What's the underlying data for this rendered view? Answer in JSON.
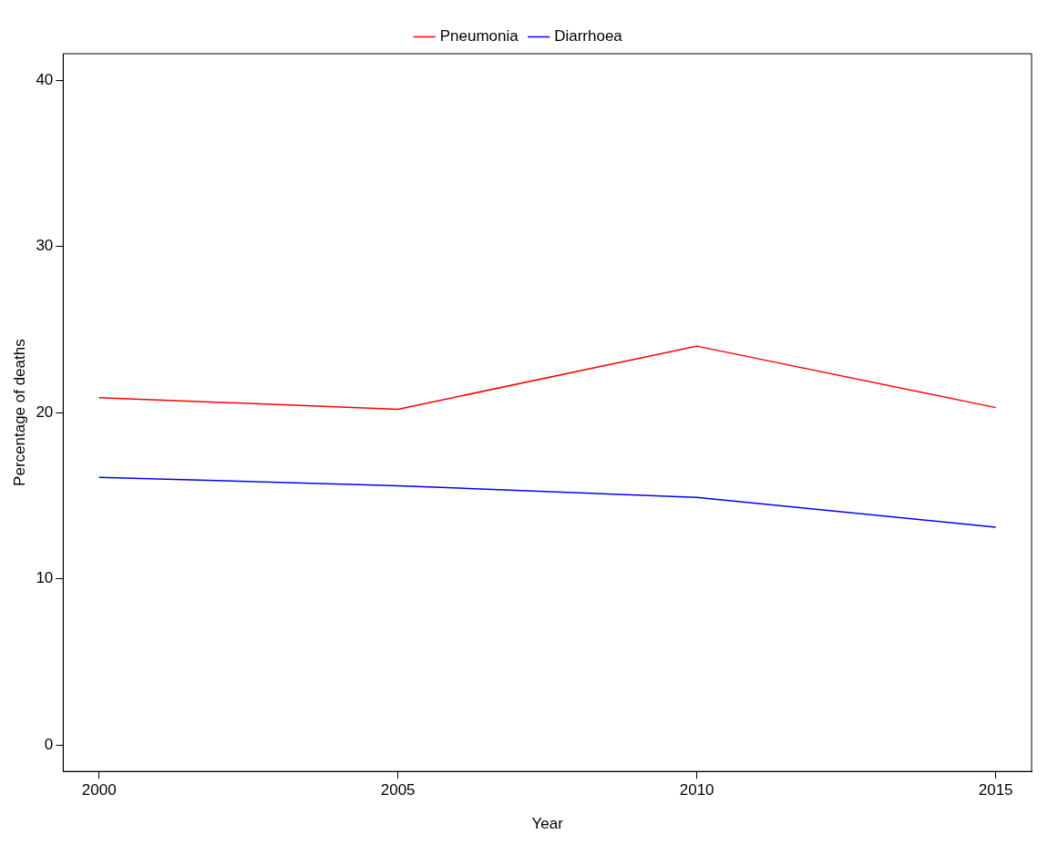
{
  "chart_data": {
    "type": "line",
    "xlabel": "Year",
    "ylabel": "Percentage of deaths",
    "x": [
      2000,
      2005,
      2010,
      2015
    ],
    "series": [
      {
        "name": "Pneumonia",
        "color": "#ff0000",
        "values": [
          20.9,
          20.2,
          24.0,
          20.3
        ]
      },
      {
        "name": "Diarrhoea",
        "color": "#0000ff",
        "values": [
          16.1,
          15.6,
          14.9,
          13.1
        ]
      }
    ],
    "xlim": [
      1999.4,
      2015.6
    ],
    "xticks": [
      2000,
      2005,
      2010,
      2015
    ],
    "ylim": [
      -1.6,
      41.6
    ],
    "yticks": [
      0,
      10,
      20,
      30,
      40
    ],
    "legend": "top",
    "grid": false,
    "marker": "none",
    "line_style": "solid"
  }
}
